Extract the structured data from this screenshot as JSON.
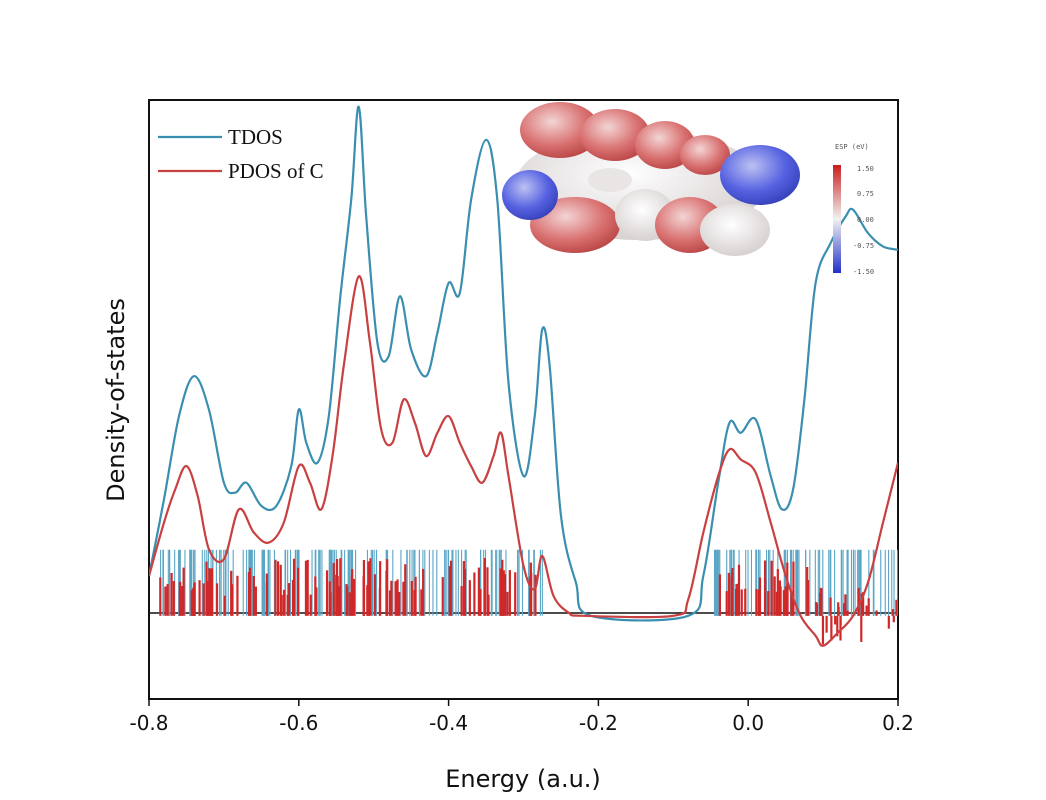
{
  "chart_data": {
    "type": "line",
    "title": "",
    "xlabel": "Energy (a.u.)",
    "ylabel": "Density-of-states",
    "xlim": [
      -0.8,
      0.2
    ],
    "ylim": [
      -0.25,
      1.55
    ],
    "x_ticks": [
      "-0.8",
      "-0.6",
      "-0.4",
      "-0.2",
      "0.0",
      "0.2"
    ],
    "legend_position": "top-left",
    "grid": false,
    "series": [
      {
        "name": "TDOS",
        "color": "#3a8fb0",
        "points": [
          [
            -0.8,
            0.12
          ],
          [
            -0.78,
            0.35
          ],
          [
            -0.76,
            0.6
          ],
          [
            -0.74,
            0.72
          ],
          [
            -0.72,
            0.62
          ],
          [
            -0.7,
            0.4
          ],
          [
            -0.685,
            0.37
          ],
          [
            -0.67,
            0.4
          ],
          [
            -0.65,
            0.33
          ],
          [
            -0.63,
            0.33
          ],
          [
            -0.61,
            0.45
          ],
          [
            -0.6,
            0.62
          ],
          [
            -0.59,
            0.52
          ],
          [
            -0.575,
            0.46
          ],
          [
            -0.56,
            0.6
          ],
          [
            -0.545,
            0.95
          ],
          [
            -0.53,
            1.25
          ],
          [
            -0.52,
            1.53
          ],
          [
            -0.51,
            1.2
          ],
          [
            -0.495,
            0.82
          ],
          [
            -0.48,
            0.78
          ],
          [
            -0.465,
            0.96
          ],
          [
            -0.45,
            0.8
          ],
          [
            -0.43,
            0.72
          ],
          [
            -0.415,
            0.85
          ],
          [
            -0.4,
            1.0
          ],
          [
            -0.385,
            0.97
          ],
          [
            -0.37,
            1.25
          ],
          [
            -0.35,
            1.43
          ],
          [
            -0.335,
            1.25
          ],
          [
            -0.32,
            0.7
          ],
          [
            -0.3,
            0.42
          ],
          [
            -0.285,
            0.6
          ],
          [
            -0.275,
            0.86
          ],
          [
            -0.265,
            0.75
          ],
          [
            -0.25,
            0.3
          ],
          [
            -0.23,
            0.1
          ],
          [
            -0.21,
            0.0
          ],
          [
            -0.08,
            0.0
          ],
          [
            -0.06,
            0.12
          ],
          [
            -0.04,
            0.4
          ],
          [
            -0.025,
            0.58
          ],
          [
            -0.01,
            0.55
          ],
          [
            0.01,
            0.59
          ],
          [
            0.03,
            0.42
          ],
          [
            0.045,
            0.32
          ],
          [
            0.06,
            0.38
          ],
          [
            0.075,
            0.65
          ],
          [
            0.09,
            1.0
          ],
          [
            0.11,
            1.12
          ],
          [
            0.13,
            1.2
          ],
          [
            0.14,
            1.22
          ],
          [
            0.16,
            1.15
          ],
          [
            0.18,
            1.11
          ],
          [
            0.2,
            1.1
          ]
        ]
      },
      {
        "name": "PDOS of C",
        "color": "#c94040",
        "points": [
          [
            -0.8,
            0.12
          ],
          [
            -0.78,
            0.28
          ],
          [
            -0.765,
            0.38
          ],
          [
            -0.75,
            0.45
          ],
          [
            -0.735,
            0.36
          ],
          [
            -0.72,
            0.2
          ],
          [
            -0.7,
            0.17
          ],
          [
            -0.68,
            0.32
          ],
          [
            -0.66,
            0.25
          ],
          [
            -0.64,
            0.22
          ],
          [
            -0.62,
            0.28
          ],
          [
            -0.6,
            0.45
          ],
          [
            -0.585,
            0.4
          ],
          [
            -0.57,
            0.32
          ],
          [
            -0.555,
            0.48
          ],
          [
            -0.54,
            0.75
          ],
          [
            -0.52,
            1.02
          ],
          [
            -0.505,
            0.82
          ],
          [
            -0.49,
            0.56
          ],
          [
            -0.475,
            0.52
          ],
          [
            -0.46,
            0.65
          ],
          [
            -0.445,
            0.58
          ],
          [
            -0.43,
            0.48
          ],
          [
            -0.415,
            0.55
          ],
          [
            -0.4,
            0.6
          ],
          [
            -0.385,
            0.52
          ],
          [
            -0.37,
            0.45
          ],
          [
            -0.355,
            0.4
          ],
          [
            -0.34,
            0.48
          ],
          [
            -0.33,
            0.55
          ],
          [
            -0.32,
            0.42
          ],
          [
            -0.3,
            0.15
          ],
          [
            -0.285,
            0.08
          ],
          [
            -0.275,
            0.18
          ],
          [
            -0.26,
            0.06
          ],
          [
            -0.24,
            0.01
          ],
          [
            -0.22,
            0.0
          ],
          [
            -0.1,
            0.0
          ],
          [
            -0.08,
            0.05
          ],
          [
            -0.06,
            0.25
          ],
          [
            -0.04,
            0.42
          ],
          [
            -0.025,
            0.5
          ],
          [
            -0.01,
            0.47
          ],
          [
            0.01,
            0.43
          ],
          [
            0.03,
            0.28
          ],
          [
            0.05,
            0.12
          ],
          [
            0.07,
            0.0
          ],
          [
            0.09,
            -0.06
          ],
          [
            0.1,
            -0.09
          ],
          [
            0.12,
            -0.05
          ],
          [
            0.14,
            0.0
          ],
          [
            0.16,
            0.1
          ],
          [
            0.18,
            0.28
          ],
          [
            0.2,
            0.46
          ]
        ]
      }
    ],
    "inset": {
      "colorbar_title": "ESP (eV)",
      "colorbar_ticks": [
        "1.50",
        "0.75",
        "0.00",
        "-0.75",
        "-1.50"
      ]
    }
  }
}
